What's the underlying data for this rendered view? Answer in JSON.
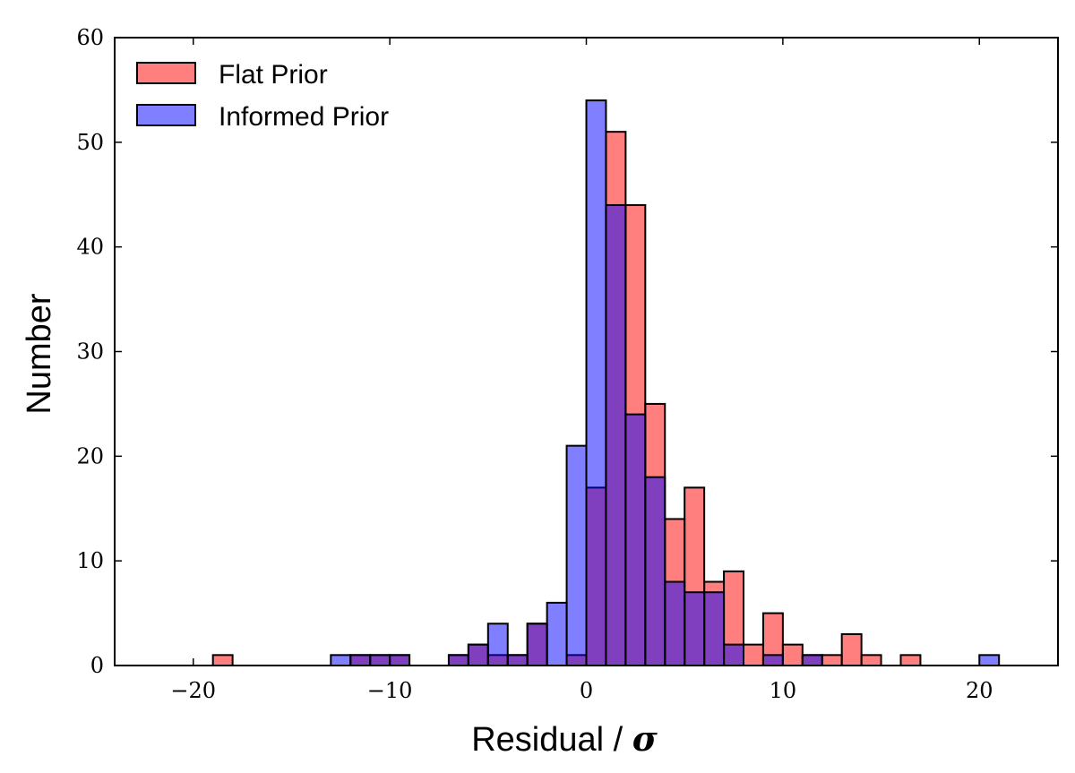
{
  "chart_data": {
    "type": "bar",
    "title": "",
    "xlabel": "Residual / ",
    "xlabel_symbol": "σ",
    "ylabel": "Number",
    "xlim": [
      -24,
      24
    ],
    "ylim": [
      0,
      60
    ],
    "xticks": [
      -20,
      -10,
      0,
      10,
      20
    ],
    "xtick_labels": [
      "−20",
      "−10",
      "0",
      "10",
      "20"
    ],
    "yticks": [
      0,
      10,
      20,
      30,
      40,
      50,
      60
    ],
    "ytick_labels": [
      "0",
      "10",
      "20",
      "30",
      "40",
      "50",
      "60"
    ],
    "bin_width": 1,
    "legend_position": "top-left",
    "series": [
      {
        "name": "Flat Prior",
        "color": "#ff0000",
        "alpha": 0.5,
        "bins": [
          {
            "x0": -19,
            "count": 1
          },
          {
            "x0": -12,
            "count": 1
          },
          {
            "x0": -11,
            "count": 1
          },
          {
            "x0": -10,
            "count": 1
          },
          {
            "x0": -7,
            "count": 1
          },
          {
            "x0": -6,
            "count": 2
          },
          {
            "x0": -5,
            "count": 1
          },
          {
            "x0": -4,
            "count": 1
          },
          {
            "x0": -3,
            "count": 4
          },
          {
            "x0": -1,
            "count": 1
          },
          {
            "x0": 0,
            "count": 17
          },
          {
            "x0": 1,
            "count": 51
          },
          {
            "x0": 2,
            "count": 44
          },
          {
            "x0": 3,
            "count": 25
          },
          {
            "x0": 4,
            "count": 14
          },
          {
            "x0": 5,
            "count": 17
          },
          {
            "x0": 6,
            "count": 8
          },
          {
            "x0": 7,
            "count": 9
          },
          {
            "x0": 8,
            "count": 2
          },
          {
            "x0": 9,
            "count": 5
          },
          {
            "x0": 10,
            "count": 2
          },
          {
            "x0": 11,
            "count": 1
          },
          {
            "x0": 12,
            "count": 1
          },
          {
            "x0": 13,
            "count": 3
          },
          {
            "x0": 14,
            "count": 1
          },
          {
            "x0": 16,
            "count": 1
          }
        ]
      },
      {
        "name": "Informed Prior",
        "color": "#0000ff",
        "alpha": 0.5,
        "bins": [
          {
            "x0": -13,
            "count": 1
          },
          {
            "x0": -12,
            "count": 1
          },
          {
            "x0": -11,
            "count": 1
          },
          {
            "x0": -10,
            "count": 1
          },
          {
            "x0": -7,
            "count": 1
          },
          {
            "x0": -6,
            "count": 2
          },
          {
            "x0": -5,
            "count": 4
          },
          {
            "x0": -4,
            "count": 1
          },
          {
            "x0": -3,
            "count": 4
          },
          {
            "x0": -2,
            "count": 6
          },
          {
            "x0": -1,
            "count": 21
          },
          {
            "x0": 0,
            "count": 54
          },
          {
            "x0": 1,
            "count": 44
          },
          {
            "x0": 2,
            "count": 24
          },
          {
            "x0": 3,
            "count": 18
          },
          {
            "x0": 4,
            "count": 8
          },
          {
            "x0": 5,
            "count": 7
          },
          {
            "x0": 6,
            "count": 7
          },
          {
            "x0": 7,
            "count": 2
          },
          {
            "x0": 9,
            "count": 1
          },
          {
            "x0": 11,
            "count": 1
          },
          {
            "x0": 20,
            "count": 1
          }
        ]
      }
    ]
  }
}
